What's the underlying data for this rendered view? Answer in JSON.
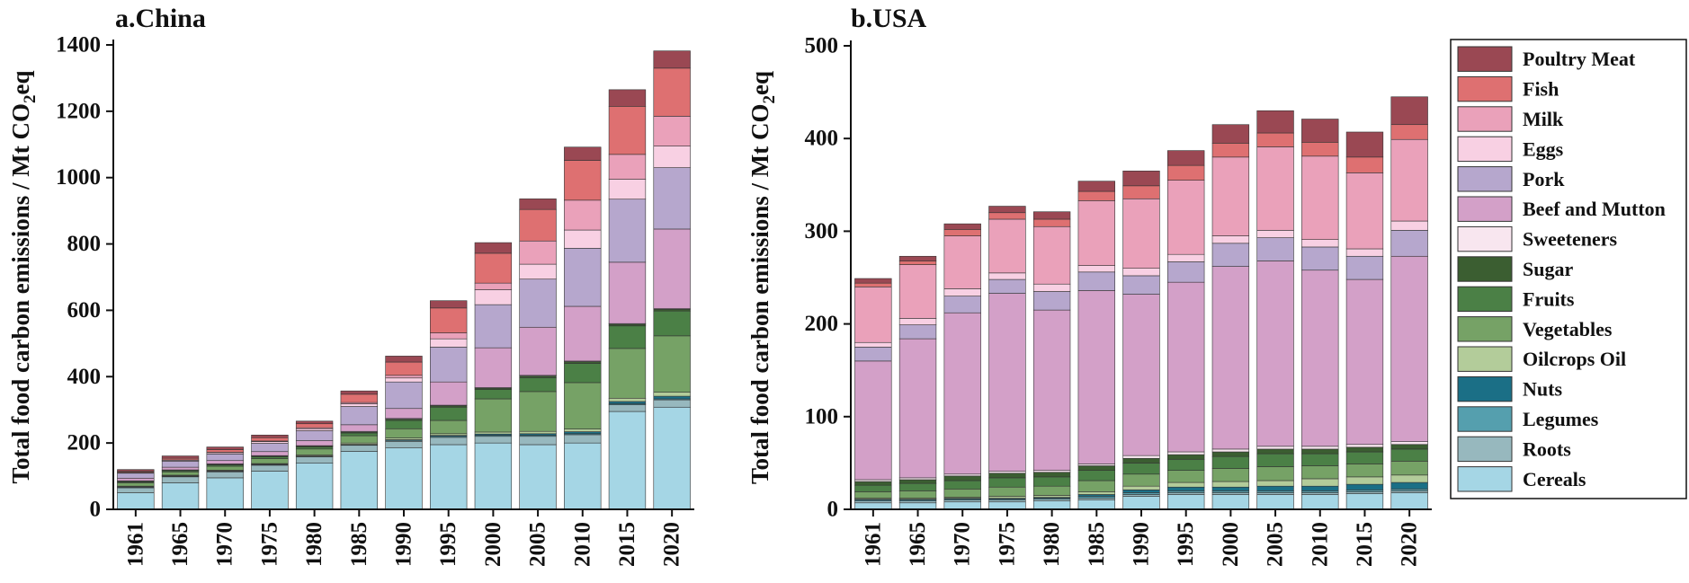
{
  "chart_data": [
    {
      "id": "china",
      "type": "stacked-bar",
      "title": "a.China",
      "ylabel": "Total food carbon emissions / Mt CO",
      "ylabel_sub": "2",
      "ylabel_suffix": "eq",
      "ylim": [
        0,
        1400
      ],
      "yticks": [
        0,
        200,
        400,
        600,
        800,
        1000,
        1200,
        1400
      ],
      "categories": [
        "1961",
        "1965",
        "1970",
        "1975",
        "1980",
        "1985",
        "1990",
        "1995",
        "2000",
        "2005",
        "2010",
        "2015",
        "2020"
      ],
      "series": [
        {
          "name": "Cereals",
          "values": [
            50,
            80,
            95,
            115,
            140,
            175,
            185,
            195,
            200,
            195,
            200,
            295,
            308
          ]
        },
        {
          "name": "Roots",
          "values": [
            15,
            18,
            18,
            18,
            18,
            18,
            20,
            22,
            20,
            25,
            25,
            20,
            22
          ]
        },
        {
          "name": "Legumes",
          "values": [
            2,
            2,
            2,
            2,
            2,
            2,
            3,
            3,
            3,
            3,
            3,
            3,
            3
          ]
        },
        {
          "name": "Nuts",
          "values": [
            1,
            1,
            1,
            1,
            1,
            1,
            2,
            3,
            4,
            5,
            6,
            7,
            8
          ]
        },
        {
          "name": "Oilcrops Oil",
          "values": [
            2,
            2,
            2,
            2,
            3,
            4,
            5,
            5,
            6,
            7,
            8,
            10,
            12
          ]
        },
        {
          "name": "Vegetables",
          "values": [
            10,
            10,
            12,
            15,
            18,
            22,
            28,
            40,
            100,
            120,
            140,
            150,
            170
          ]
        },
        {
          "name": "Fruits",
          "values": [
            3,
            3,
            4,
            5,
            6,
            8,
            25,
            40,
            28,
            42,
            58,
            68,
            75
          ]
        },
        {
          "name": "Sugar",
          "values": [
            2,
            2,
            2,
            3,
            3,
            3,
            4,
            4,
            4,
            5,
            5,
            5,
            5
          ]
        },
        {
          "name": "Sweeteners",
          "values": [
            1,
            1,
            1,
            1,
            1,
            2,
            2,
            2,
            2,
            2,
            2,
            2,
            2
          ]
        },
        {
          "name": "Beef and Mutton",
          "values": [
            8,
            8,
            10,
            12,
            15,
            20,
            30,
            70,
            120,
            145,
            165,
            185,
            240
          ]
        },
        {
          "name": "Pork",
          "values": [
            15,
            18,
            20,
            25,
            30,
            55,
            80,
            105,
            130,
            145,
            175,
            190,
            185
          ]
        },
        {
          "name": "Eggs",
          "values": [
            2,
            3,
            4,
            5,
            6,
            8,
            12,
            25,
            45,
            45,
            55,
            60,
            65
          ]
        },
        {
          "name": "Milk",
          "values": [
            1,
            1,
            1,
            2,
            3,
            4,
            8,
            18,
            20,
            70,
            90,
            75,
            90
          ]
        },
        {
          "name": "Fish",
          "values": [
            3,
            5,
            8,
            10,
            12,
            25,
            40,
            75,
            90,
            95,
            120,
            145,
            145
          ]
        },
        {
          "name": "Poultry Meat",
          "values": [
            5,
            7,
            8,
            8,
            8,
            10,
            18,
            22,
            32,
            32,
            40,
            50,
            52
          ]
        }
      ]
    },
    {
      "id": "usa",
      "type": "stacked-bar",
      "title": "b.USA",
      "ylabel": "Total food carbon emissions / Mt CO",
      "ylabel_sub": "2",
      "ylabel_suffix": "eq",
      "ylim": [
        0,
        500
      ],
      "yticks": [
        0,
        100,
        200,
        300,
        400,
        500
      ],
      "categories": [
        "1961",
        "1965",
        "1970",
        "1975",
        "1980",
        "1985",
        "1990",
        "1995",
        "2000",
        "2005",
        "2010",
        "2015",
        "2020"
      ],
      "series": [
        {
          "name": "Cereals",
          "values": [
            7,
            7,
            8,
            8,
            9,
            10,
            14,
            16,
            16,
            16,
            16,
            17,
            18
          ]
        },
        {
          "name": "Roots",
          "values": [
            2,
            2,
            2,
            2,
            2,
            2,
            2,
            2,
            2,
            2,
            2,
            2,
            2
          ]
        },
        {
          "name": "Legumes",
          "values": [
            1,
            1,
            1,
            1,
            1,
            2,
            2,
            2,
            2,
            2,
            2,
            2,
            2
          ]
        },
        {
          "name": "Nuts",
          "values": [
            1,
            1,
            1,
            1,
            1,
            2,
            3,
            4,
            4,
            5,
            5,
            6,
            7
          ]
        },
        {
          "name": "Oilcrops Oil",
          "values": [
            1,
            1,
            1,
            2,
            2,
            3,
            4,
            5,
            6,
            6,
            8,
            8,
            8
          ]
        },
        {
          "name": "Vegetables",
          "values": [
            7,
            8,
            9,
            10,
            10,
            12,
            13,
            13,
            14,
            15,
            14,
            14,
            15
          ]
        },
        {
          "name": "Fruits",
          "values": [
            7,
            8,
            9,
            10,
            10,
            11,
            12,
            12,
            13,
            14,
            13,
            13,
            13
          ]
        },
        {
          "name": "Sugar",
          "values": [
            4,
            4,
            5,
            5,
            5,
            5,
            5,
            5,
            5,
            5,
            5,
            5,
            5
          ]
        },
        {
          "name": "Sweeteners",
          "values": [
            2,
            2,
            2,
            2,
            2,
            2,
            3,
            3,
            3,
            3,
            3,
            3,
            3
          ]
        },
        {
          "name": "Beef and Mutton",
          "values": [
            128,
            150,
            174,
            192,
            173,
            187,
            174,
            183,
            197,
            200,
            190,
            178,
            200
          ]
        },
        {
          "name": "Pork",
          "values": [
            15,
            15,
            18,
            15,
            20,
            20,
            20,
            22,
            25,
            25,
            25,
            25,
            28
          ]
        },
        {
          "name": "Eggs",
          "values": [
            5,
            7,
            8,
            7,
            8,
            7,
            8,
            8,
            8,
            8,
            8,
            8,
            10
          ]
        },
        {
          "name": "Milk",
          "values": [
            60,
            58,
            57,
            58,
            62,
            70,
            75,
            80,
            85,
            90,
            90,
            82,
            88
          ]
        },
        {
          "name": "Fish",
          "values": [
            4,
            4,
            7,
            7,
            8,
            10,
            14,
            16,
            15,
            15,
            15,
            17,
            16
          ]
        },
        {
          "name": "Poultry Meat",
          "values": [
            5,
            5,
            6,
            7,
            8,
            11,
            16,
            16,
            20,
            24,
            25,
            27,
            30
          ]
        }
      ]
    }
  ],
  "colors": {
    "Poultry Meat": "#9a4853",
    "Fish": "#de7071",
    "Milk": "#eaa1ba",
    "Eggs": "#f8d0e3",
    "Pork": "#b6a7cd",
    "Beef and Mutton": "#d3a0c8",
    "Sweeteners": "#f8e6ef",
    "Sugar": "#3b5e31",
    "Fruits": "#4b8046",
    "Vegetables": "#76a266",
    "Oilcrops Oil": "#b3cc9a",
    "Nuts": "#1b6f86",
    "Legumes": "#559fae",
    "Roots": "#97b8be",
    "Cereals": "#a5d6e5"
  },
  "legend": [
    "Poultry Meat",
    "Fish",
    "Milk",
    "Eggs",
    "Pork",
    "Beef and Mutton",
    "Sweeteners",
    "Sugar",
    "Fruits",
    "Vegetables",
    "Oilcrops Oil",
    "Nuts",
    "Legumes",
    "Roots",
    "Cereals"
  ]
}
